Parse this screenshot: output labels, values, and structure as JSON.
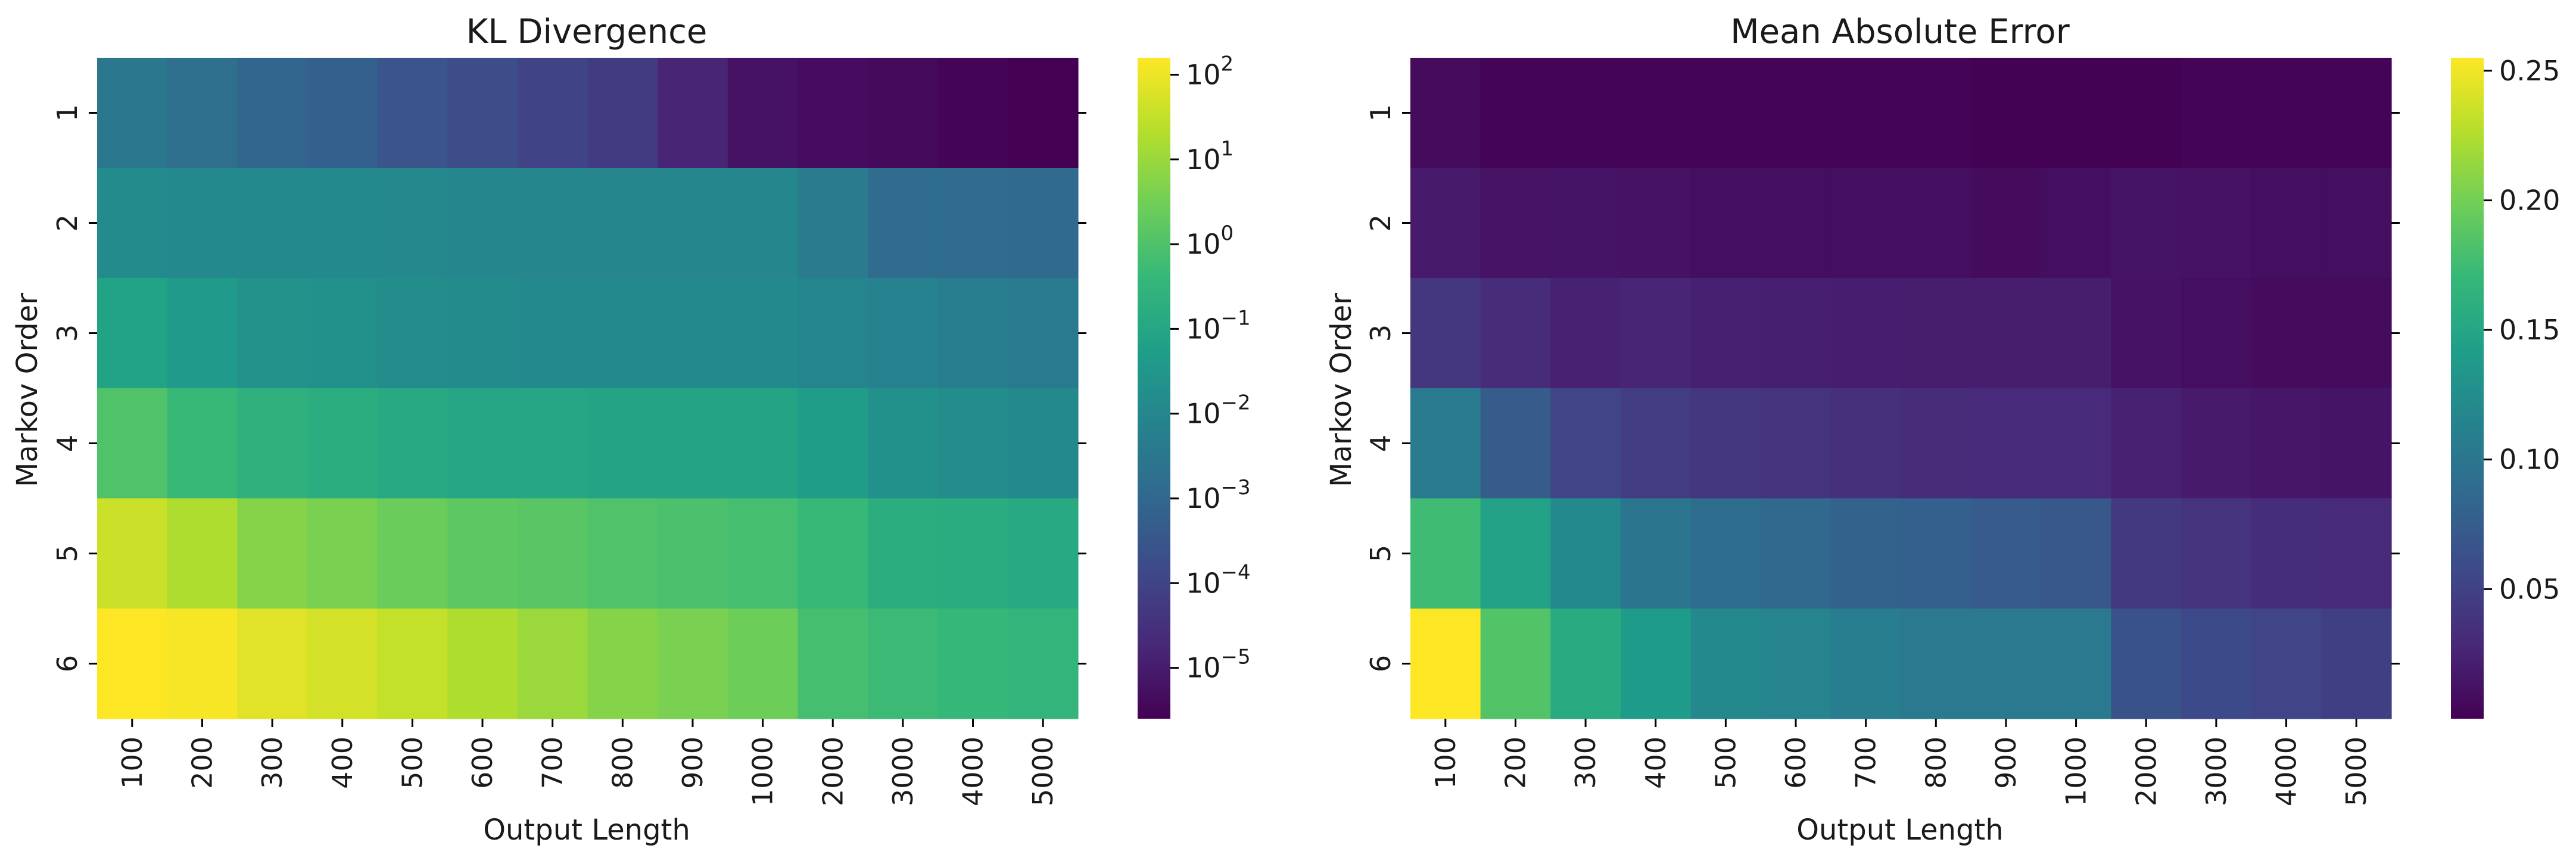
{
  "chart_data": [
    {
      "type": "heatmap",
      "title": "KL Divergence",
      "xlabel": "Output Length",
      "ylabel": "Markov Order",
      "x_categories": [
        "100",
        "200",
        "300",
        "400",
        "500",
        "600",
        "700",
        "800",
        "900",
        "1000",
        "2000",
        "3000",
        "4000",
        "5000"
      ],
      "y_categories": [
        "1",
        "2",
        "3",
        "4",
        "5",
        "6"
      ],
      "colormap": "viridis",
      "scale": "log",
      "vmin_exp": -5.6,
      "vmax_exp": 2.2,
      "colorbar": {
        "ticks": [
          {
            "base": "10",
            "exp": "2",
            "value": 100
          },
          {
            "base": "10",
            "exp": "1",
            "value": 10
          },
          {
            "base": "10",
            "exp": "0",
            "value": 1
          },
          {
            "base": "10",
            "exp": "−1",
            "value": 0.1
          },
          {
            "base": "10",
            "exp": "−2",
            "value": 0.01
          },
          {
            "base": "10",
            "exp": "−3",
            "value": 0.001
          },
          {
            "base": "10",
            "exp": "−4",
            "value": 0.0001
          },
          {
            "base": "10",
            "exp": "−5",
            "value": 1e-05
          }
        ]
      },
      "values": [
        [
          0.0032,
          0.0017,
          0.0009,
          0.0006,
          0.0003,
          0.00018,
          0.0001,
          6e-05,
          1.6e-05,
          6e-06,
          4.5e-06,
          4e-06,
          3e-06,
          1.7e-06
        ],
        [
          0.0141,
          0.012,
          0.012,
          0.012,
          0.0114,
          0.01,
          0.01,
          0.01,
          0.01,
          0.01,
          0.0045,
          0.0014,
          0.0014,
          0.0012
        ],
        [
          0.08,
          0.04,
          0.0225,
          0.02,
          0.016,
          0.0141,
          0.012,
          0.012,
          0.012,
          0.012,
          0.0089,
          0.0071,
          0.005,
          0.004
        ],
        [
          1.0,
          0.45,
          0.23,
          0.18,
          0.13,
          0.1,
          0.1,
          0.089,
          0.089,
          0.089,
          0.05,
          0.02,
          0.016,
          0.012
        ],
        [
          40.0,
          18.0,
          5.6,
          4.0,
          2.5,
          1.6,
          1.4,
          1.0,
          0.89,
          0.71,
          0.45,
          0.18,
          0.16,
          0.13
        ],
        [
          180.0,
          130.0,
          71.0,
          50.0,
          32.0,
          18.0,
          10.0,
          5.6,
          4.0,
          2.8,
          0.71,
          0.5,
          0.4,
          0.32
        ]
      ]
    },
    {
      "type": "heatmap",
      "title": "Mean Absolute Error",
      "xlabel": "Output Length",
      "ylabel": "Markov Order",
      "x_categories": [
        "100",
        "200",
        "300",
        "400",
        "500",
        "600",
        "700",
        "800",
        "900",
        "1000",
        "2000",
        "3000",
        "4000",
        "5000"
      ],
      "y_categories": [
        "1",
        "2",
        "3",
        "4",
        "5",
        "6"
      ],
      "colormap": "viridis",
      "scale": "linear",
      "vmin": 0.0,
      "vmax": 0.255,
      "colorbar": {
        "ticks": [
          {
            "label": "0.25",
            "value": 0.25
          },
          {
            "label": "0.20",
            "value": 0.2
          },
          {
            "label": "0.15",
            "value": 0.15
          },
          {
            "label": "0.10",
            "value": 0.1
          },
          {
            "label": "0.05",
            "value": 0.05
          }
        ]
      },
      "values": [
        [
          0.007,
          0.003,
          0.002,
          0.002,
          0.002,
          0.002,
          0.002,
          0.002,
          0.001,
          0.001,
          0.001,
          0.002,
          0.003,
          0.003
        ],
        [
          0.018,
          0.013,
          0.014,
          0.012,
          0.01,
          0.01,
          0.01,
          0.01,
          0.008,
          0.01,
          0.014,
          0.012,
          0.01,
          0.01
        ],
        [
          0.04,
          0.032,
          0.024,
          0.026,
          0.023,
          0.022,
          0.021,
          0.02,
          0.02,
          0.02,
          0.012,
          0.01,
          0.008,
          0.008
        ],
        [
          0.105,
          0.074,
          0.053,
          0.046,
          0.04,
          0.038,
          0.035,
          0.032,
          0.03,
          0.03,
          0.024,
          0.018,
          0.016,
          0.014
        ],
        [
          0.175,
          0.145,
          0.12,
          0.1,
          0.09,
          0.085,
          0.08,
          0.078,
          0.073,
          0.07,
          0.043,
          0.038,
          0.033,
          0.03
        ],
        [
          0.255,
          0.185,
          0.155,
          0.14,
          0.12,
          0.115,
          0.108,
          0.104,
          0.104,
          0.104,
          0.065,
          0.058,
          0.053,
          0.048
        ]
      ]
    }
  ],
  "colors": {
    "viridis": [
      "#440154",
      "#482878",
      "#3e4989",
      "#31688e",
      "#26828e",
      "#1f9e89",
      "#35b779",
      "#6ece58",
      "#b5de2b",
      "#fde725"
    ]
  }
}
